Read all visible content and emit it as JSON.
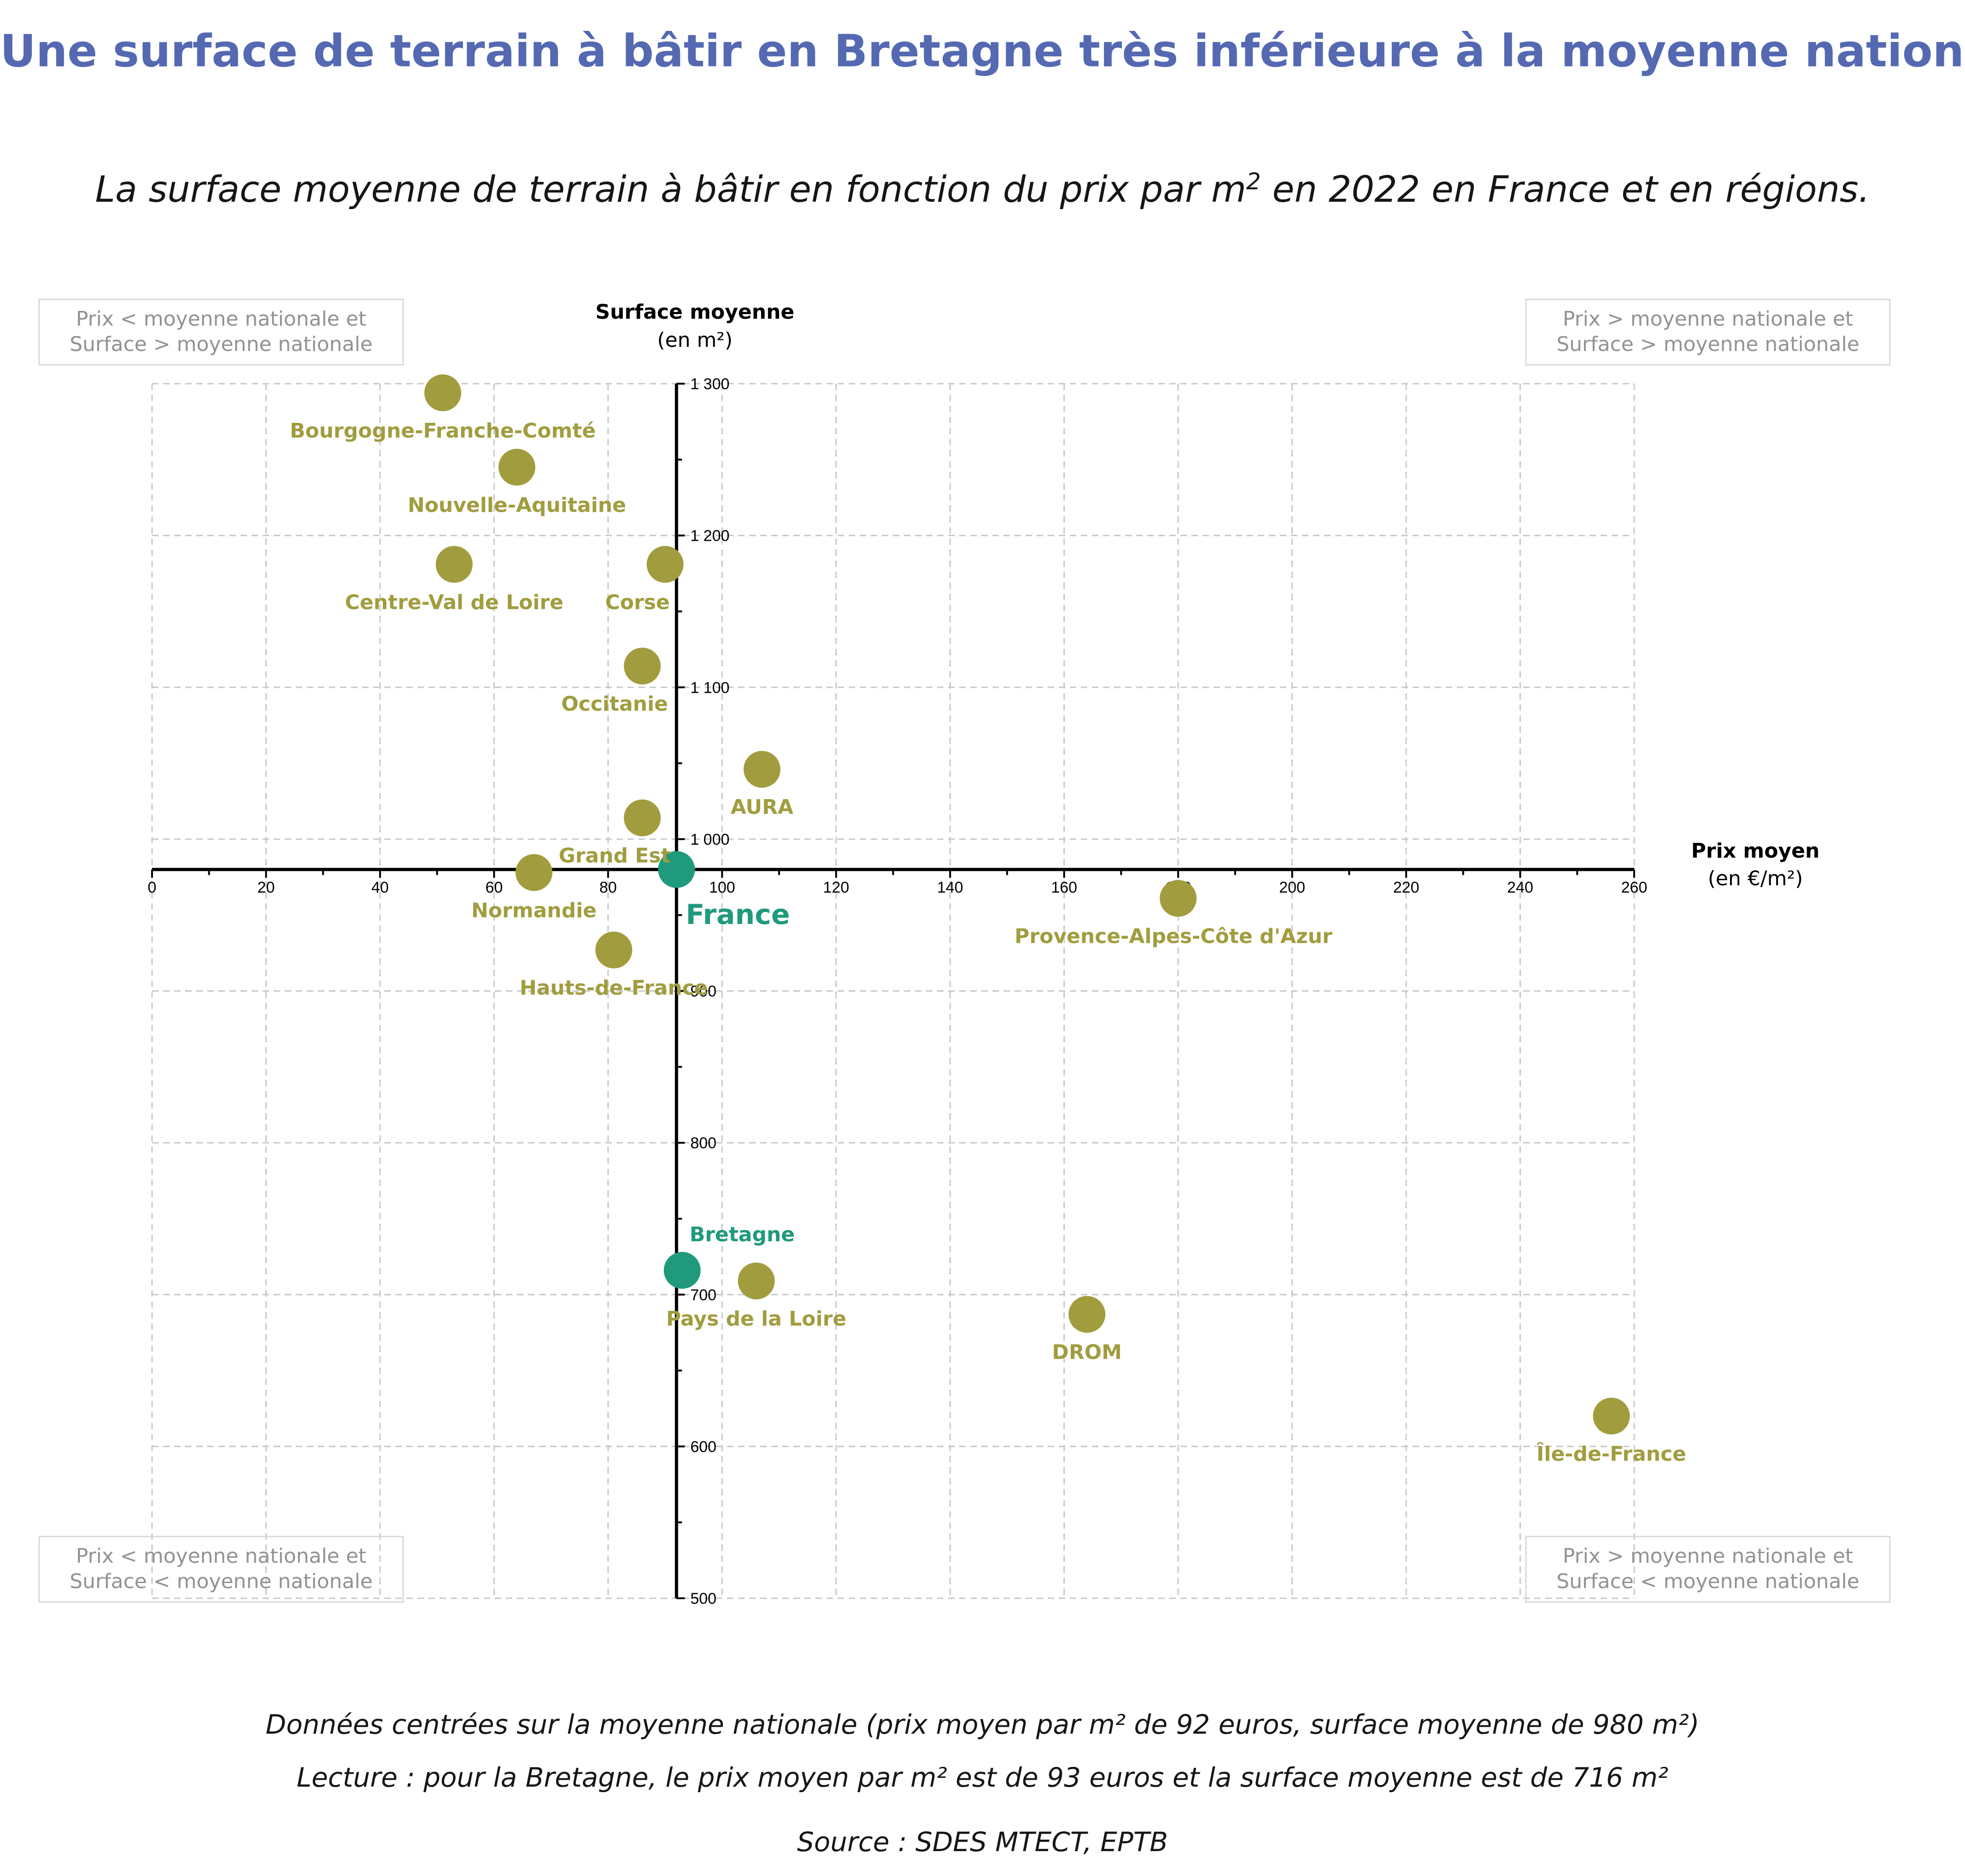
{
  "title": "Une surface de terrain à bâtir en Bretagne très inférieure à la moyenne nationale",
  "subtitle": {
    "main": "La surface moyenne de terrain à bâtir en fonction du prix par m",
    "sup": "2",
    "end": " en 2022 en France et en régions."
  },
  "footnotes": {
    "line1": "Données centrées sur la moyenne nationale (prix moyen par m² de 92 euros, surface moyenne de 980 m²)",
    "line2": "Lecture : pour la Bretagne, le prix moyen par m² est de 93 euros et la surface moyenne est de 716 m²",
    "source": "Source : SDES MTECT, EPTB"
  },
  "chart_data": {
    "type": "scatter",
    "xlabel": "Prix moyen",
    "xlabel_unit": "(en €/m²)",
    "ylabel": "Surface moyenne",
    "ylabel_unit": "(en m²)",
    "xlim": [
      0,
      260
    ],
    "ylim": [
      500,
      1300
    ],
    "x_ticks": [
      0,
      20,
      40,
      60,
      80,
      100,
      120,
      140,
      160,
      180,
      200,
      220,
      240,
      260
    ],
    "y_ticks": [
      500,
      600,
      700,
      800,
      900,
      1000,
      1100,
      1200,
      1300
    ],
    "y_tick_labels": [
      "500",
      "600",
      "700",
      "800",
      "900",
      "1 000",
      "1 100",
      "1 200",
      "1 300"
    ],
    "x_minor_step": 10,
    "y_minor_step": 50,
    "grid": true,
    "x_axis_crosses_at": 980,
    "y_axis_crosses_at": 92,
    "colors": {
      "region": "#a19d3f",
      "highlight": "#1f9a7c",
      "title": "#5469b1",
      "quadrant_text": "#929292",
      "grid": "#c8c8c8"
    },
    "quadrants": {
      "top_left": [
        "Prix < moyenne nationale et",
        "Surface > moyenne nationale"
      ],
      "top_right": [
        "Prix > moyenne nationale et",
        "Surface > moyenne nationale"
      ],
      "bottom_left": [
        "Prix < moyenne nationale et",
        "Surface < moyenne nationale"
      ],
      "bottom_right": [
        "Prix > moyenne nationale et",
        "Surface < moyenne nationale"
      ]
    },
    "points": [
      {
        "name": "Bourgogne-Franche-Comté",
        "x": 51,
        "y": 1294,
        "label_pos": "below",
        "highlight": false
      },
      {
        "name": "Nouvelle-Aquitaine",
        "x": 64,
        "y": 1245,
        "label_pos": "below",
        "highlight": false
      },
      {
        "name": "Centre-Val de Loire",
        "x": 53,
        "y": 1181,
        "label_pos": "below",
        "highlight": false
      },
      {
        "name": "Corse",
        "x": 90,
        "y": 1181,
        "label_pos": "below-left",
        "highlight": false
      },
      {
        "name": "Occitanie",
        "x": 86,
        "y": 1114,
        "label_pos": "below-left",
        "highlight": false
      },
      {
        "name": "AURA",
        "x": 107,
        "y": 1046,
        "label_pos": "below",
        "highlight": false
      },
      {
        "name": "Grand Est",
        "x": 86,
        "y": 1014,
        "label_pos": "below-left",
        "highlight": false
      },
      {
        "name": "Normandie",
        "x": 67,
        "y": 978,
        "label_pos": "below",
        "highlight": false
      },
      {
        "name": "France",
        "x": 92,
        "y": 980,
        "label_pos": "below-right",
        "highlight": true
      },
      {
        "name": "Provence-Alpes-Côte d'Azur",
        "x": 180,
        "y": 961,
        "label_pos": "below-right",
        "highlight": false
      },
      {
        "name": "Hauts-de-France",
        "x": 81,
        "y": 927,
        "label_pos": "below",
        "highlight": false
      },
      {
        "name": "Bretagne",
        "x": 93,
        "y": 716,
        "label_pos": "above-right",
        "highlight": true
      },
      {
        "name": "Pays de la Loire",
        "x": 106,
        "y": 709,
        "label_pos": "below",
        "highlight": false
      },
      {
        "name": "DROM",
        "x": 164,
        "y": 687,
        "label_pos": "below",
        "highlight": false
      },
      {
        "name": "Île-de-France",
        "x": 256,
        "y": 620,
        "label_pos": "below",
        "highlight": false
      }
    ]
  }
}
